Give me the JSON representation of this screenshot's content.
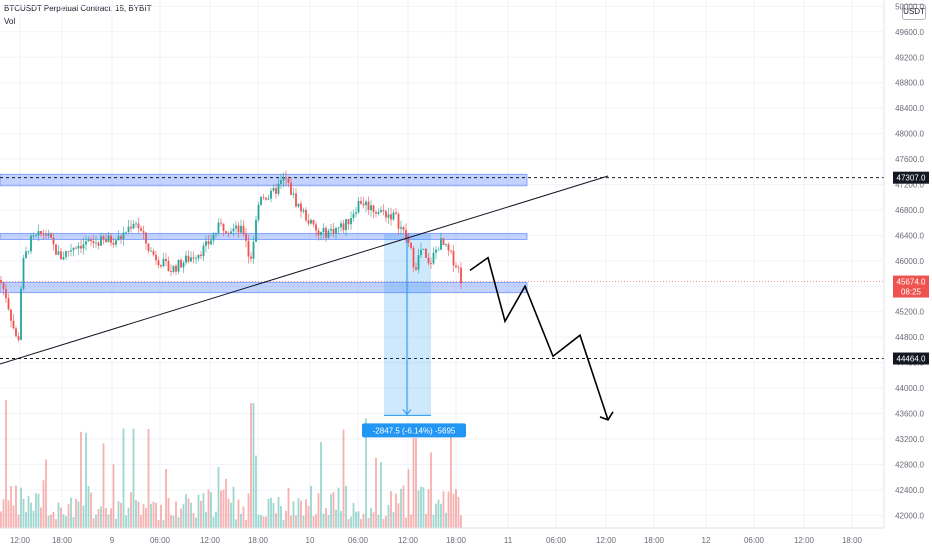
{
  "header": {
    "title": "BTCUSDT Perpetual Contract, 15, BYBIT",
    "volume_label": "Vol"
  },
  "price_axis": {
    "currency": "USDT"
  },
  "colors": {
    "up": "#26a69a",
    "down": "#ef5350",
    "zone": "#2962ff",
    "measure": "#2196f3"
  },
  "chart_data": {
    "type": "candlestick",
    "title": "BTCUSDT Perpetual Contract, 15, BYBIT",
    "exchange": "BYBIT",
    "interval": "15",
    "ylim": [
      41800,
      50100
    ],
    "y_ticks": [
      42000,
      42400,
      42800,
      43200,
      43600,
      44000,
      44400,
      44800,
      45200,
      45600,
      46000,
      46400,
      46800,
      47200,
      47600,
      48000,
      48400,
      48800,
      49200,
      49600,
      50000
    ],
    "y_tick_labels": [
      "42000.0",
      "42400.0",
      "42800.0",
      "43200.0",
      "43600.0",
      "44000.0",
      "44400.0",
      "44800.0",
      "45200.0",
      "45600.0",
      "46000.0",
      "46400.0",
      "46800.0",
      "47200.0",
      "47600.0",
      "48000.0",
      "48400.0",
      "48800.0",
      "49200.0",
      "49600.0",
      "50000.0"
    ],
    "x_tick_labels": [
      "12:00",
      "18:00",
      "9",
      "06:00",
      "12:00",
      "18:00",
      "10",
      "06:00",
      "12:00",
      "18:00",
      "11",
      "06:00",
      "12:00",
      "18:00",
      "12",
      "06:00",
      "12:00",
      "18:00"
    ],
    "price_levels": [
      {
        "price": 47307,
        "label": "47307.0",
        "style": "dashed"
      },
      {
        "price": 44464,
        "label": "44464.0",
        "style": "dashed"
      }
    ],
    "last_price": {
      "price": 45674,
      "label": "45674.0",
      "countdown": "08:25"
    },
    "zones": [
      {
        "from": 47180,
        "to": 47360
      },
      {
        "from": 46360,
        "to": 46430
      },
      {
        "from": 45500,
        "to": 45660
      }
    ],
    "measure": {
      "from_price": 46420,
      "to_price": 43570,
      "label": "-2847.5 (-6.14%) -5695"
    },
    "projection": [
      45850,
      46050,
      45050,
      45600,
      44500,
      44830,
      43500
    ]
  }
}
